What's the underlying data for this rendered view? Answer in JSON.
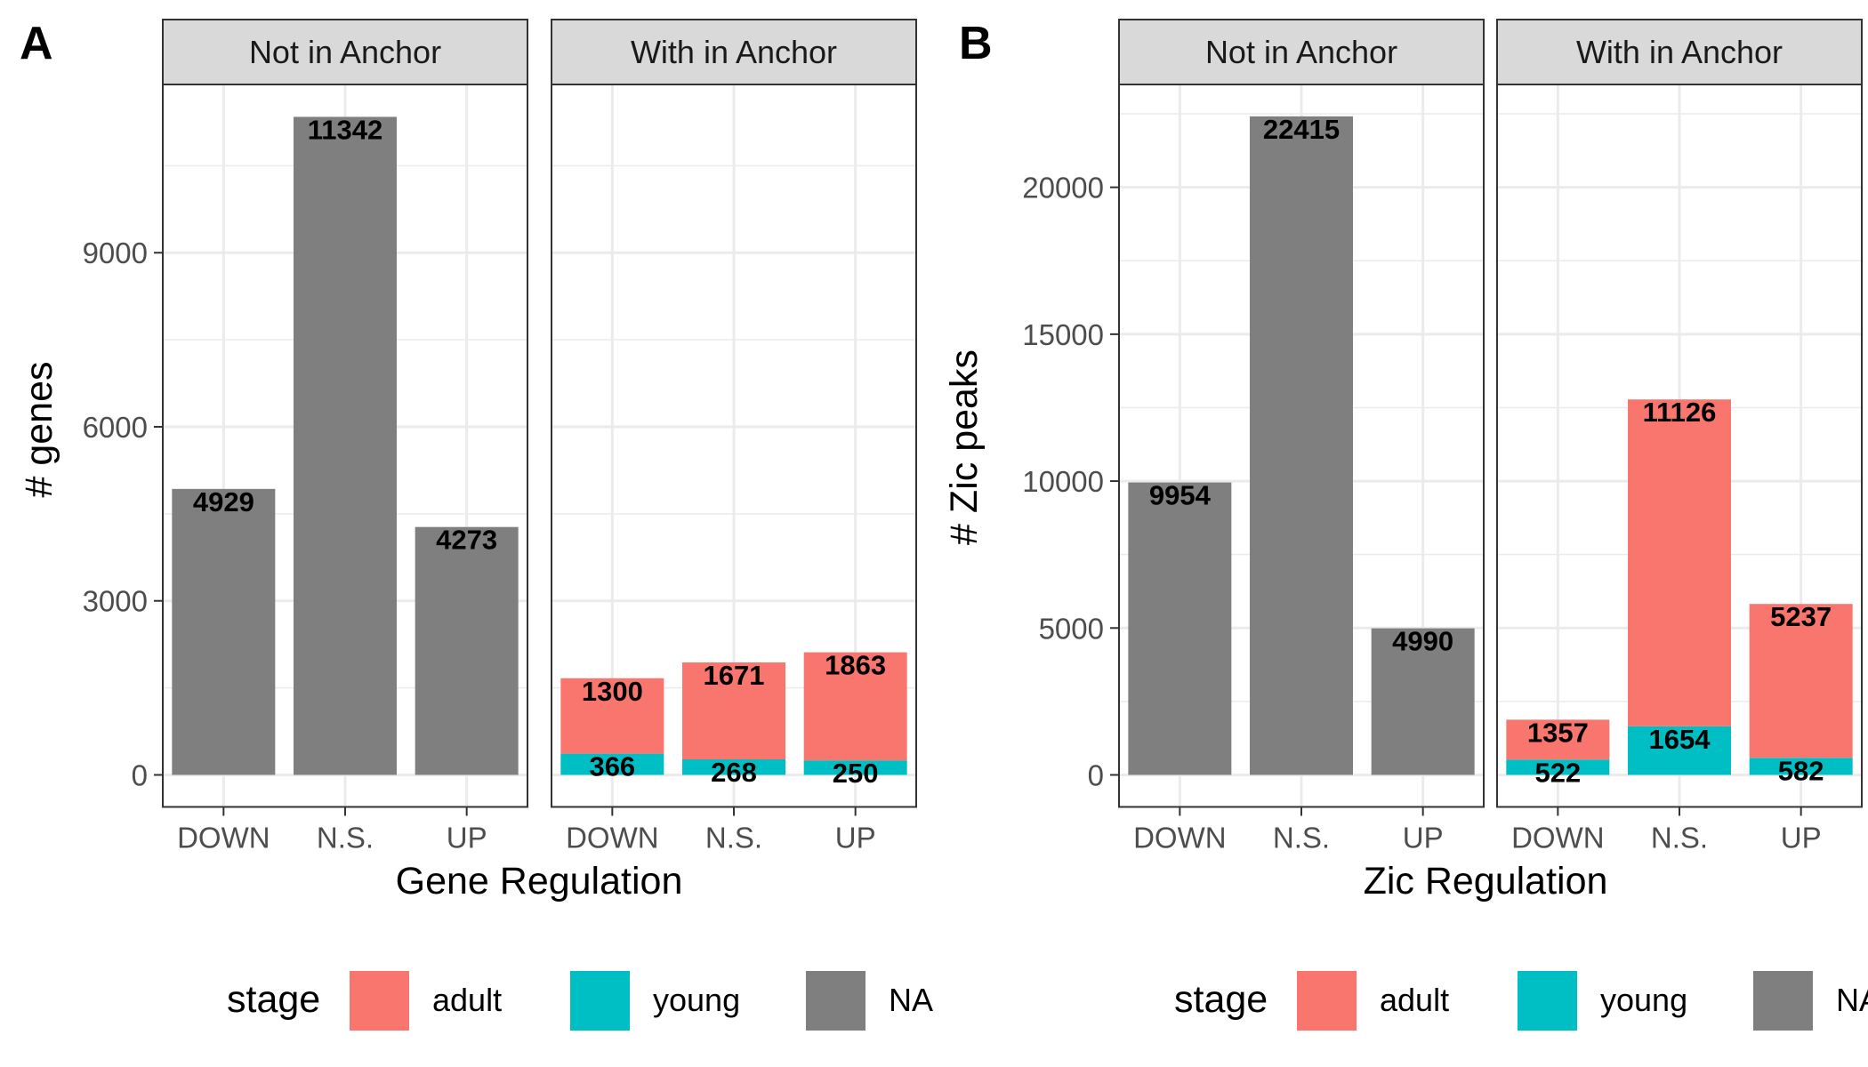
{
  "colors": {
    "adult": "#F8766D",
    "young": "#00BFC4",
    "NA": "#7F7F7F",
    "strip_bg": "#D9D9D9",
    "grid": "#EBEBEB"
  },
  "legend": {
    "title": "stage",
    "items": [
      {
        "key": "adult",
        "label": "adult"
      },
      {
        "key": "young",
        "label": "young"
      },
      {
        "key": "NA",
        "label": "NA"
      }
    ]
  },
  "chart_data": [
    {
      "type": "bar",
      "stacked": true,
      "panel_label": "A",
      "xlabel": "Gene Regulation",
      "ylabel": "# genes",
      "categories": [
        "DOWN",
        "N.S.",
        "UP"
      ],
      "ylim": [
        0,
        11900
      ],
      "yticks": [
        0,
        3000,
        6000,
        9000
      ],
      "facets": [
        {
          "title": "Not in Anchor",
          "stacks": [
            [
              {
                "stage": "NA",
                "value": 4929
              }
            ],
            [
              {
                "stage": "NA",
                "value": 11342
              }
            ],
            [
              {
                "stage": "NA",
                "value": 4273
              }
            ]
          ]
        },
        {
          "title": "With in Anchor",
          "stacks": [
            [
              {
                "stage": "young",
                "value": 366
              },
              {
                "stage": "adult",
                "value": 1300
              }
            ],
            [
              {
                "stage": "young",
                "value": 268
              },
              {
                "stage": "adult",
                "value": 1671
              }
            ],
            [
              {
                "stage": "young",
                "value": 250
              },
              {
                "stage": "adult",
                "value": 1863
              }
            ]
          ]
        }
      ]
    },
    {
      "type": "bar",
      "stacked": true,
      "panel_label": "B",
      "xlabel": "Zic Regulation",
      "ylabel": "# Zic peaks",
      "categories": [
        "DOWN",
        "N.S.",
        "UP"
      ],
      "ylim": [
        0,
        23500
      ],
      "yticks": [
        0,
        5000,
        10000,
        15000,
        20000
      ],
      "facets": [
        {
          "title": "Not in Anchor",
          "stacks": [
            [
              {
                "stage": "NA",
                "value": 9954
              }
            ],
            [
              {
                "stage": "NA",
                "value": 22415
              }
            ],
            [
              {
                "stage": "NA",
                "value": 4990
              }
            ]
          ]
        },
        {
          "title": "With in Anchor",
          "stacks": [
            [
              {
                "stage": "young",
                "value": 522
              },
              {
                "stage": "adult",
                "value": 1357
              }
            ],
            [
              {
                "stage": "young",
                "value": 1654
              },
              {
                "stage": "adult",
                "value": 11126
              }
            ],
            [
              {
                "stage": "young",
                "value": 582
              },
              {
                "stage": "adult",
                "value": 5237
              }
            ]
          ]
        }
      ]
    }
  ]
}
